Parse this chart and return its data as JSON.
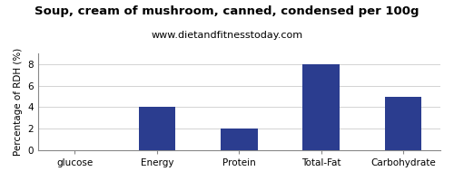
{
  "title": "Soup, cream of mushroom, canned, condensed per 100g",
  "subtitle": "www.dietandfitnesstoday.com",
  "categories": [
    "glucose",
    "Energy",
    "Protein",
    "Total-Fat",
    "Carbohydrate"
  ],
  "values": [
    0,
    4,
    2,
    8,
    5
  ],
  "bar_color": "#2b3d8f",
  "ylabel": "Percentage of RDH (%)",
  "ylim": [
    0,
    9
  ],
  "yticks": [
    0,
    2,
    4,
    6,
    8
  ],
  "background_color": "#ffffff",
  "title_fontsize": 9.5,
  "subtitle_fontsize": 8,
  "tick_fontsize": 7.5,
  "ylabel_fontsize": 7.5,
  "bar_width": 0.45
}
